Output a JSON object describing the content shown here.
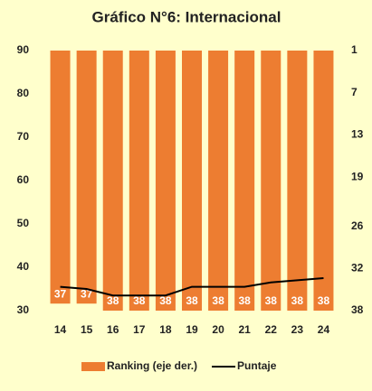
{
  "chart_data": {
    "type": "bar-line",
    "title": "Gráfico N°6: Internacional",
    "categories": [
      "14",
      "15",
      "16",
      "17",
      "18",
      "19",
      "20",
      "21",
      "22",
      "23",
      "24"
    ],
    "series": [
      {
        "name": "Ranking (eje der.)",
        "type": "bar",
        "axis": "y2",
        "color": "#ed7d31",
        "values": [
          37,
          37,
          38,
          38,
          38,
          38,
          38,
          38,
          38,
          38,
          38
        ]
      },
      {
        "name": "Puntaje",
        "type": "line",
        "color": "#000000",
        "values": [
          35.5,
          35,
          33.5,
          33.5,
          33.5,
          35.5,
          35.5,
          35.5,
          36.5,
          37,
          37.5
        ]
      }
    ],
    "ylim": [
      30,
      90
    ],
    "yticks": [
      30,
      40,
      50,
      60,
      70,
      80,
      90
    ],
    "y2lim": [
      38,
      1
    ],
    "y2ticks": [
      1,
      7,
      13,
      19,
      26,
      32,
      38
    ],
    "legend": "bottom"
  }
}
